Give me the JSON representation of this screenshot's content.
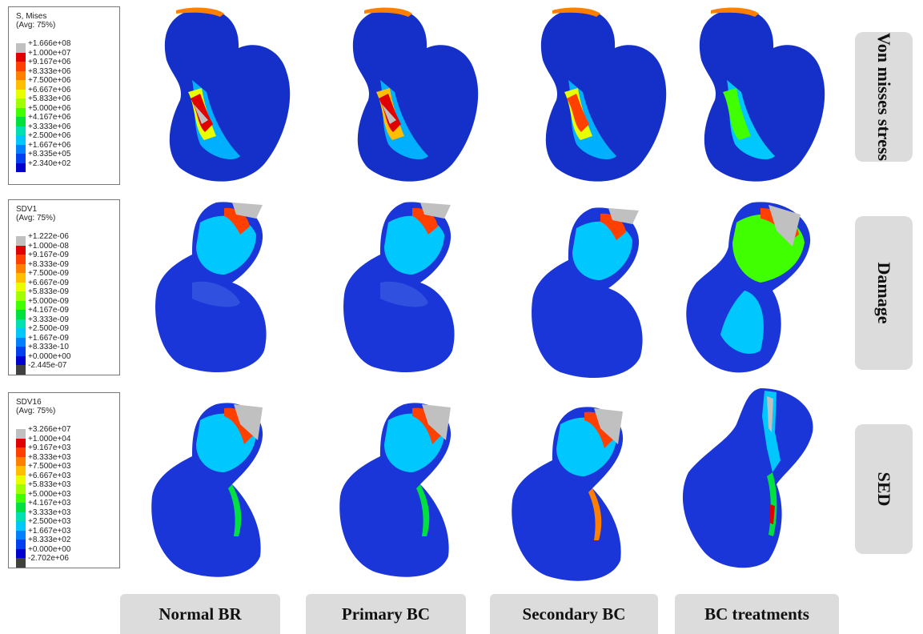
{
  "legends": [
    {
      "title_line1": "S, Mises",
      "title_line2": "(Avg: 75%)",
      "values": [
        "+1.666e+08",
        "+1.000e+07",
        "+9.167e+06",
        "+8.333e+06",
        "+7.500e+06",
        "+6.667e+06",
        "+5.833e+06",
        "+5.000e+06",
        "+4.167e+06",
        "+3.333e+06",
        "+2.500e+06",
        "+1.667e+06",
        "+8.335e+05",
        "+2.340e+02"
      ]
    },
    {
      "title_line1": "SDV1",
      "title_line2": "(Avg: 75%)",
      "values": [
        "+1.222e-06",
        "+1.000e-08",
        "+9.167e-09",
        "+8.333e-09",
        "+7.500e-09",
        "+6.667e-09",
        "+5.833e-09",
        "+5.000e-09",
        "+4.167e-09",
        "+3.333e-09",
        "+2.500e-09",
        "+1.667e-09",
        "+8.333e-10",
        "+0.000e+00",
        "-2.445e-07"
      ]
    },
    {
      "title_line1": "SDV16",
      "title_line2": "(Avg: 75%)",
      "values": [
        "+3.266e+07",
        "+1.000e+04",
        "+9.167e+03",
        "+8.333e+03",
        "+7.500e+03",
        "+6.667e+03",
        "+5.833e+03",
        "+5.000e+03",
        "+4.167e+03",
        "+3.333e+03",
        "+2.500e+03",
        "+1.667e+03",
        "+8.333e+02",
        "+0.000e+00",
        "-2.702e+06"
      ]
    }
  ],
  "colormap": [
    "#c0c0c0",
    "#e00000",
    "#ff4000",
    "#ff8000",
    "#ffbf00",
    "#e8ff00",
    "#a0ff00",
    "#40ff00",
    "#00e040",
    "#00e0b0",
    "#00c8ff",
    "#0080ff",
    "#0040f0",
    "#0000d0",
    "#404040"
  ],
  "row_labels": [
    "Von misses stress",
    "Damage",
    "SED"
  ],
  "column_labels": [
    "Normal BR",
    "Primary BC",
    "Secondary BC",
    "BC treatments"
  ]
}
